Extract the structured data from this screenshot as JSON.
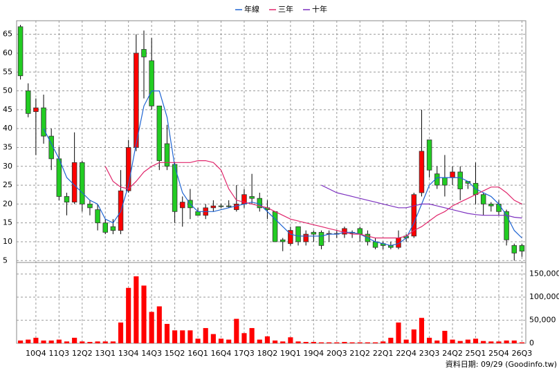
{
  "chart_data": {
    "type": "candlestick",
    "legend": "top",
    "footer": "資料日期: 09/29 (Goodinfo.tw)",
    "up_color": "#ff0000",
    "down_color": "#22cc22",
    "categories": [
      null,
      null,
      "10Q4",
      null,
      null,
      "11Q3",
      null,
      null,
      "12Q2",
      null,
      null,
      "13Q1",
      null,
      null,
      "13Q4",
      null,
      null,
      "14Q3",
      null,
      null,
      "15Q2",
      null,
      null,
      "16Q1",
      null,
      null,
      "16Q4",
      null,
      null,
      "17Q3",
      null,
      null,
      "18Q2",
      null,
      null,
      "19Q1",
      null,
      null,
      "19Q4",
      null,
      null,
      "20Q3",
      null,
      null,
      "21Q2",
      null,
      null,
      "22Q1",
      null,
      null,
      "22Q4",
      null,
      null,
      "23Q3",
      null,
      null,
      "24Q2",
      null,
      null,
      "25Q1",
      null,
      null,
      "25Q4",
      null,
      null,
      "26Q3"
    ],
    "open": [
      67,
      50,
      44.5,
      45.5,
      38,
      32,
      22,
      20.5,
      31,
      20,
      18.5,
      15,
      14,
      13,
      23.5,
      35,
      61,
      58,
      46,
      36,
      30.5,
      19,
      21,
      18,
      17,
      19,
      19.5,
      19.5,
      18.5,
      20,
      22,
      21.5,
      19,
      18,
      10.5,
      9.5,
      14,
      10,
      12.5,
      12.5,
      12,
      12,
      12,
      12.5,
      13.5,
      12,
      10,
      9.5,
      9,
      8.5,
      11.5,
      11.5,
      23,
      37,
      28,
      27,
      27,
      28.5,
      26,
      25.5,
      22.5,
      20,
      20,
      18,
      9,
      9
    ],
    "high": [
      67.5,
      52,
      48,
      49,
      40,
      35,
      23,
      39,
      31.5,
      21,
      20,
      16,
      16,
      29,
      37,
      65,
      66,
      64,
      46,
      41,
      31,
      22,
      24,
      19,
      20,
      21,
      20,
      21,
      25,
      24,
      28,
      23,
      21,
      18,
      11,
      14,
      14,
      13,
      13,
      13,
      13,
      13,
      14,
      13,
      14,
      13,
      11,
      10,
      10,
      13,
      12,
      23,
      45,
      37,
      30,
      33,
      30,
      30,
      26,
      31,
      23,
      20.5,
      21,
      18.5,
      9.5,
      9.5
    ],
    "low": [
      53,
      43,
      33,
      36,
      29,
      21,
      17,
      20,
      18,
      17,
      13,
      12,
      12,
      12,
      23,
      34,
      48,
      45,
      29,
      29,
      15,
      14,
      16,
      17,
      16,
      18,
      19,
      19,
      18,
      19,
      20,
      18,
      16,
      10,
      7.5,
      9,
      9,
      9,
      10,
      8,
      10,
      11,
      11,
      11,
      10,
      9,
      8,
      8,
      8,
      8,
      10,
      11,
      22,
      27,
      24,
      22,
      25,
      21,
      24,
      20,
      17,
      18,
      17,
      9,
      5,
      6
    ],
    "close": [
      54,
      44,
      45.5,
      38,
      32,
      22,
      20.5,
      31,
      20,
      19,
      15,
      12.5,
      13,
      23.5,
      35,
      60,
      59,
      46,
      31.5,
      30,
      18,
      20.5,
      19,
      17,
      19,
      19.5,
      19.3,
      19.3,
      20,
      22.5,
      21.5,
      19,
      18.5,
      10,
      10,
      13,
      10,
      12,
      12,
      9,
      12.2,
      12.2,
      13.5,
      12.3,
      12,
      10,
      8.5,
      9,
      8.5,
      11,
      11,
      22.5,
      34,
      29,
      25,
      25,
      28.5,
      24,
      25.5,
      22.5,
      20,
      19.5,
      18,
      10.5,
      7,
      7.5
    ],
    "series": [
      {
        "name": "年線",
        "color": "#1e64d2",
        "values": [
          null,
          null,
          null,
          40,
          36,
          32,
          27,
          25,
          23,
          21,
          20,
          16,
          15,
          18,
          25,
          36,
          46,
          50,
          50,
          43,
          30,
          23,
          20,
          18,
          18,
          18,
          18.5,
          19,
          19.5,
          20,
          20.5,
          20,
          18,
          16,
          14,
          12,
          11.5,
          11.5,
          11.5,
          11.5,
          12,
          12,
          12.5,
          12.5,
          12,
          11,
          10,
          9.5,
          9,
          9.5,
          11,
          15,
          20,
          25,
          27,
          27,
          27,
          27,
          26,
          24,
          23,
          22,
          20,
          17,
          13,
          11
        ]
      },
      {
        "name": "三年",
        "color": "#e0246a",
        "values": [
          null,
          null,
          null,
          null,
          null,
          null,
          null,
          null,
          null,
          null,
          null,
          30,
          26,
          24.5,
          24,
          26,
          28.5,
          30,
          31,
          31,
          31,
          31,
          31,
          31.5,
          31.5,
          31,
          29,
          24,
          21,
          20.5,
          20,
          19.5,
          19,
          18,
          17,
          16,
          15.5,
          15,
          14.5,
          14,
          13.5,
          13,
          12.5,
          12,
          12,
          11.5,
          11,
          11,
          11,
          11,
          11.5,
          13,
          14,
          15.5,
          17,
          18,
          19.5,
          20.5,
          21.5,
          22.5,
          23.5,
          24.5,
          24.5,
          23,
          21,
          20
        ]
      },
      {
        "name": "十年",
        "color": "#7b2fbf",
        "values": [
          null,
          null,
          null,
          null,
          null,
          null,
          null,
          null,
          null,
          null,
          null,
          null,
          null,
          null,
          null,
          null,
          null,
          null,
          null,
          null,
          null,
          null,
          null,
          null,
          null,
          null,
          null,
          null,
          null,
          null,
          null,
          null,
          null,
          null,
          null,
          null,
          null,
          null,
          null,
          25,
          24,
          23,
          22.5,
          22,
          21.5,
          21,
          20.5,
          20,
          19.5,
          19,
          19,
          19.5,
          20,
          20,
          19.5,
          19,
          18.5,
          18,
          17.5,
          17.2,
          17,
          17,
          17,
          17,
          16.5,
          16.3
        ]
      }
    ],
    "ylim": [
      4.5,
      68.6
    ],
    "yticks": [
      5,
      10,
      15,
      20,
      25,
      30,
      35,
      40,
      45,
      50,
      55,
      60,
      65
    ],
    "grid": true,
    "volume": {
      "color": "#ff0000",
      "values": [
        6000,
        8000,
        12000,
        6000,
        6000,
        8000,
        4000,
        12000,
        4000,
        3000,
        4000,
        4000,
        4000,
        45000,
        120000,
        145000,
        125000,
        68000,
        80000,
        42000,
        28000,
        28000,
        28000,
        10000,
        33000,
        20000,
        10000,
        8000,
        53000,
        22000,
        33000,
        8000,
        15000,
        6000,
        4000,
        13000,
        4000,
        3000,
        3000,
        2000,
        2000,
        2000,
        3000,
        2000,
        2000,
        2000,
        2000,
        4000,
        12000,
        45000,
        8000,
        30000,
        55000,
        12000,
        6000,
        27000,
        8000,
        5000,
        8000,
        10000,
        5000,
        4000,
        4000,
        6000,
        6000,
        2000
      ],
      "ylim": [
        0,
        175000
      ],
      "yticks": [
        0,
        {
          "value": 50000,
          "label": "50,000"
        },
        {
          "value": 100000,
          "label": "100,000"
        },
        {
          "value": 150000,
          "label": "150,000"
        }
      ]
    }
  }
}
